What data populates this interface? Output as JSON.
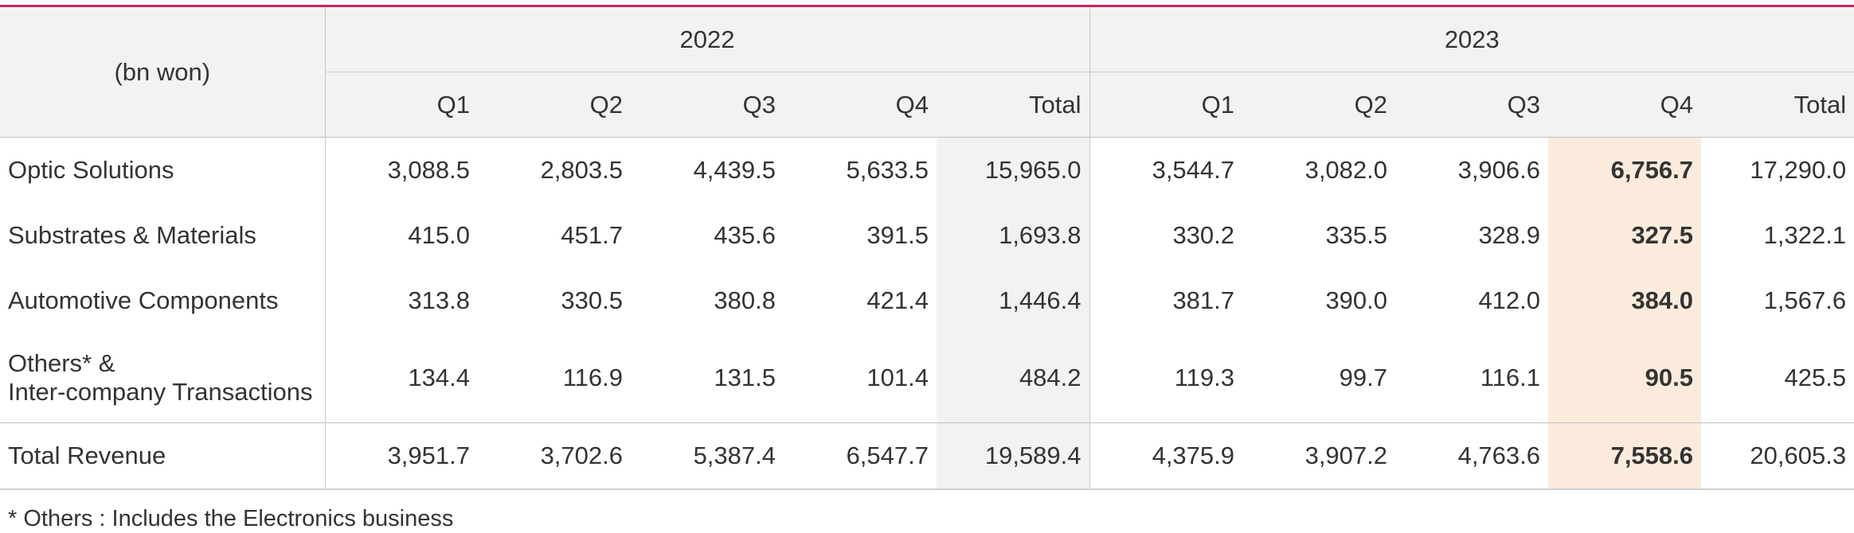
{
  "table": {
    "unit_label": "(bn won)",
    "years": [
      "2022",
      "2023"
    ],
    "col_headers": [
      "Q1",
      "Q2",
      "Q3",
      "Q4",
      "Total",
      "Q1",
      "Q2",
      "Q3",
      "Q4",
      "Total"
    ],
    "rows": [
      {
        "label": "Optic Solutions",
        "label2": "",
        "values": [
          "3,088.5",
          "2,803.5",
          "4,439.5",
          "5,633.5",
          "15,965.0",
          "3,544.7",
          "3,082.0",
          "3,906.6",
          "6,756.7",
          "17,290.0"
        ]
      },
      {
        "label": "Substrates & Materials",
        "label2": "",
        "values": [
          "415.0",
          "451.7",
          "435.6",
          "391.5",
          "1,693.8",
          "330.2",
          "335.5",
          "328.9",
          "327.5",
          "1,322.1"
        ]
      },
      {
        "label": "Automotive Components",
        "label2": "",
        "values": [
          "313.8",
          "330.5",
          "380.8",
          "421.4",
          "1,446.4",
          "381.7",
          "390.0",
          "412.0",
          "384.0",
          "1,567.6"
        ]
      },
      {
        "label": "Others* &",
        "label2": "Inter-company Transactions",
        "values": [
          "134.4",
          "116.9",
          "131.5",
          "101.4",
          "484.2",
          "119.3",
          "99.7",
          "116.1",
          "90.5",
          "425.5"
        ]
      },
      {
        "label": "Total Revenue",
        "label2": "",
        "values": [
          "3,951.7",
          "3,702.6",
          "5,387.4",
          "6,547.7",
          "19,589.4",
          "4,375.9",
          "3,907.2",
          "4,763.6",
          "7,558.6",
          "20,605.3"
        ]
      }
    ]
  },
  "footnote": "* Others : Includes the Electronics business",
  "colors": {
    "accent_line": "#c8265a",
    "header_bg": "#f2f2f2",
    "highlight_q4_2023": "#fbebdd"
  }
}
